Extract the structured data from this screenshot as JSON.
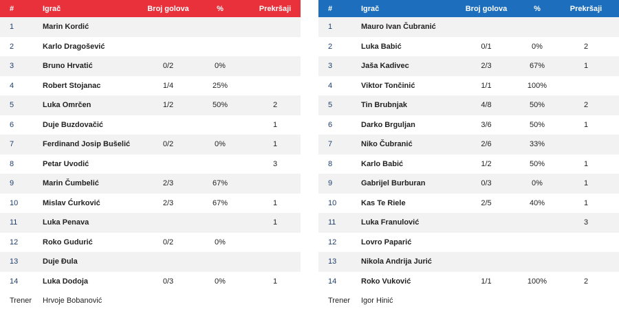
{
  "headers": {
    "num": "#",
    "player": "Igrač",
    "goals": "Broj golova",
    "pct": "%",
    "fouls": "Prekršaji"
  },
  "colors": {
    "home": "#e8313a",
    "away": "#1d6fbe"
  },
  "home": {
    "rows": [
      {
        "num": "1",
        "name": "Marin Kordić",
        "goals": "",
        "pct": "",
        "fouls": ""
      },
      {
        "num": "2",
        "name": "Karlo Dragošević",
        "goals": "",
        "pct": "",
        "fouls": ""
      },
      {
        "num": "3",
        "name": "Bruno Hrvatić",
        "goals": "0/2",
        "pct": "0%",
        "fouls": ""
      },
      {
        "num": "4",
        "name": "Robert Stojanac",
        "goals": "1/4",
        "pct": "25%",
        "fouls": ""
      },
      {
        "num": "5",
        "name": "Luka Omrčen",
        "goals": "1/2",
        "pct": "50%",
        "fouls": "2"
      },
      {
        "num": "6",
        "name": "Duje Buzdovačić",
        "goals": "",
        "pct": "",
        "fouls": "1"
      },
      {
        "num": "7",
        "name": "Ferdinand Josip Bušelić",
        "goals": "0/2",
        "pct": "0%",
        "fouls": "1"
      },
      {
        "num": "8",
        "name": "Petar Uvodić",
        "goals": "",
        "pct": "",
        "fouls": "3"
      },
      {
        "num": "9",
        "name": "Marin Čumbelić",
        "goals": "2/3",
        "pct": "67%",
        "fouls": ""
      },
      {
        "num": "10",
        "name": "Mislav Ćurković",
        "goals": "2/3",
        "pct": "67%",
        "fouls": "1"
      },
      {
        "num": "11",
        "name": "Luka Penava",
        "goals": "",
        "pct": "",
        "fouls": "1"
      },
      {
        "num": "12",
        "name": "Roko Gudurić",
        "goals": "0/2",
        "pct": "0%",
        "fouls": ""
      },
      {
        "num": "13",
        "name": "Duje Đula",
        "goals": "",
        "pct": "",
        "fouls": ""
      },
      {
        "num": "14",
        "name": "Luka Dodoja",
        "goals": "0/3",
        "pct": "0%",
        "fouls": "1"
      }
    ],
    "coach_label": "Trener",
    "coach": "Hrvoje Bobanović"
  },
  "away": {
    "rows": [
      {
        "num": "1",
        "name": "Mauro Ivan Čubranić",
        "goals": "",
        "pct": "",
        "fouls": ""
      },
      {
        "num": "2",
        "name": "Luka Babić",
        "goals": "0/1",
        "pct": "0%",
        "fouls": "2"
      },
      {
        "num": "3",
        "name": "Jaša Kadivec",
        "goals": "2/3",
        "pct": "67%",
        "fouls": "1"
      },
      {
        "num": "4",
        "name": "Viktor Tončinić",
        "goals": "1/1",
        "pct": "100%",
        "fouls": ""
      },
      {
        "num": "5",
        "name": "Tin Brubnjak",
        "goals": "4/8",
        "pct": "50%",
        "fouls": "2"
      },
      {
        "num": "6",
        "name": "Darko Brguljan",
        "goals": "3/6",
        "pct": "50%",
        "fouls": "1"
      },
      {
        "num": "7",
        "name": "Niko Čubranić",
        "goals": "2/6",
        "pct": "33%",
        "fouls": ""
      },
      {
        "num": "8",
        "name": "Karlo Babić",
        "goals": "1/2",
        "pct": "50%",
        "fouls": "1"
      },
      {
        "num": "9",
        "name": "Gabrijel Burburan",
        "goals": "0/3",
        "pct": "0%",
        "fouls": "1"
      },
      {
        "num": "10",
        "name": "Kas Te Riele",
        "goals": "2/5",
        "pct": "40%",
        "fouls": "1"
      },
      {
        "num": "11",
        "name": "Luka Franulović",
        "goals": "",
        "pct": "",
        "fouls": "3"
      },
      {
        "num": "12",
        "name": "Lovro Paparić",
        "goals": "",
        "pct": "",
        "fouls": ""
      },
      {
        "num": "13",
        "name": "Nikola Andrija Jurić",
        "goals": "",
        "pct": "",
        "fouls": ""
      },
      {
        "num": "14",
        "name": "Roko Vuković",
        "goals": "1/1",
        "pct": "100%",
        "fouls": "2"
      }
    ],
    "coach_label": "Trener",
    "coach": "Igor Hinić"
  }
}
